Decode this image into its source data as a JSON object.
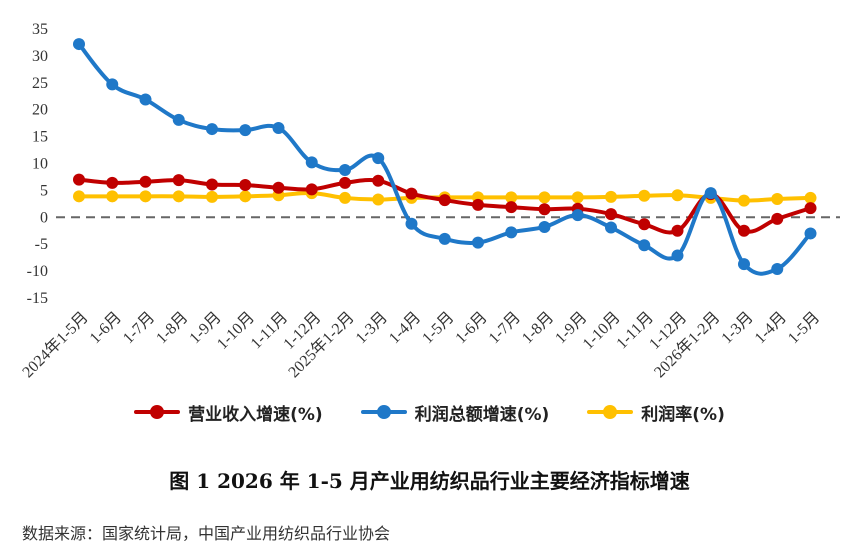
{
  "chart_data": {
    "type": "line",
    "categories": [
      "2024年1-5月",
      "1-6月",
      "1-7月",
      "1-8月",
      "1-9月",
      "1-10月",
      "1-11月",
      "1-12月",
      "2025年1-2月",
      "1-3月",
      "1-4月",
      "1-5月",
      "1-6月",
      "1-7月",
      "1-8月",
      "1-9月",
      "1-10月",
      "1-11月",
      "1-12月",
      "2026年1-2月",
      "1-3月",
      "1-4月",
      "1-5月"
    ],
    "ylim": [
      -15,
      35
    ],
    "yticks": [
      35,
      30,
      25,
      20,
      15,
      10,
      5,
      0,
      -5,
      -10,
      -15
    ],
    "zero_line": "dashed",
    "grid": false,
    "legend_position": "bottom",
    "series": [
      {
        "name": "营业收入增速(%)",
        "color": "#c00000",
        "values": [
          7.0,
          6.4,
          6.6,
          6.9,
          6.1,
          6.0,
          5.5,
          5.2,
          6.4,
          6.8,
          4.4,
          3.2,
          2.3,
          1.9,
          1.5,
          1.6,
          0.6,
          -1.3,
          -2.5,
          4.3,
          -2.5,
          -0.3,
          1.7
        ]
      },
      {
        "name": "利润总额增速(%)",
        "color": "#1f78c8",
        "values": [
          32.2,
          24.7,
          21.9,
          18.1,
          16.4,
          16.2,
          16.6,
          10.2,
          8.8,
          11.0,
          -1.2,
          -4.0,
          -4.7,
          -2.8,
          -1.8,
          0.4,
          -1.9,
          -5.2,
          -7.1,
          4.5,
          -8.7,
          -9.6,
          -3.0
        ]
      },
      {
        "name": "利润率(%)",
        "color": "#ffc000",
        "values": [
          3.9,
          3.9,
          3.9,
          3.9,
          3.8,
          3.9,
          4.1,
          4.5,
          3.6,
          3.3,
          3.6,
          3.7,
          3.7,
          3.7,
          3.7,
          3.7,
          3.8,
          4.0,
          4.1,
          3.6,
          3.1,
          3.4,
          3.6
        ]
      }
    ]
  },
  "caption": "图 1    2026 年 1-5 月产业用纺织品行业主要经济指标增速",
  "source": "数据来源：国家统计局，中国产业用纺织品行业协会"
}
